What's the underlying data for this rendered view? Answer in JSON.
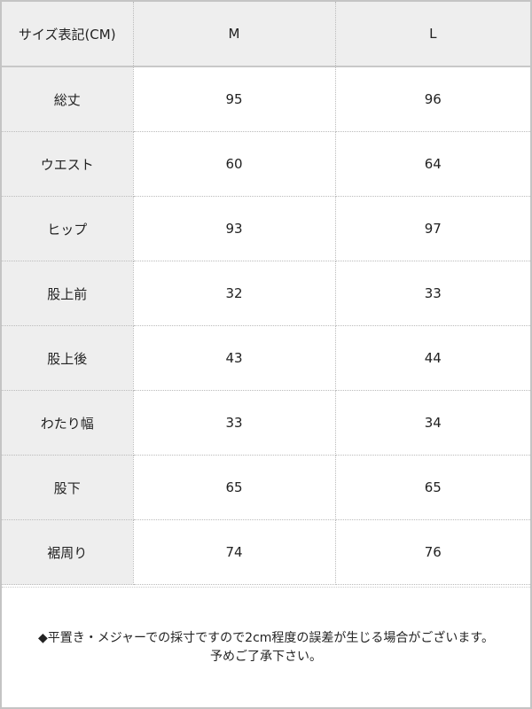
{
  "table": {
    "header": [
      "サイズ表記(CM)",
      "M",
      "L"
    ],
    "rows": [
      {
        "label": "総丈",
        "M": "95",
        "L": "96"
      },
      {
        "label": "ウエスト",
        "M": "60",
        "L": "64"
      },
      {
        "label": "ヒップ",
        "M": "93",
        "L": "97"
      },
      {
        "label": "股上前",
        "M": "32",
        "L": "33"
      },
      {
        "label": "股上後",
        "M": "43",
        "L": "44"
      },
      {
        "label": "わたり幅",
        "M": "33",
        "L": "34"
      },
      {
        "label": "股下",
        "M": "65",
        "L": "65"
      },
      {
        "label": "裾周り",
        "M": "74",
        "L": "76"
      }
    ]
  },
  "note": {
    "line1": "◆平置き・メジャーでの採寸ですので2cm程度の誤差が生じる場合がございます。",
    "line2": "予めご了承下さい。"
  }
}
